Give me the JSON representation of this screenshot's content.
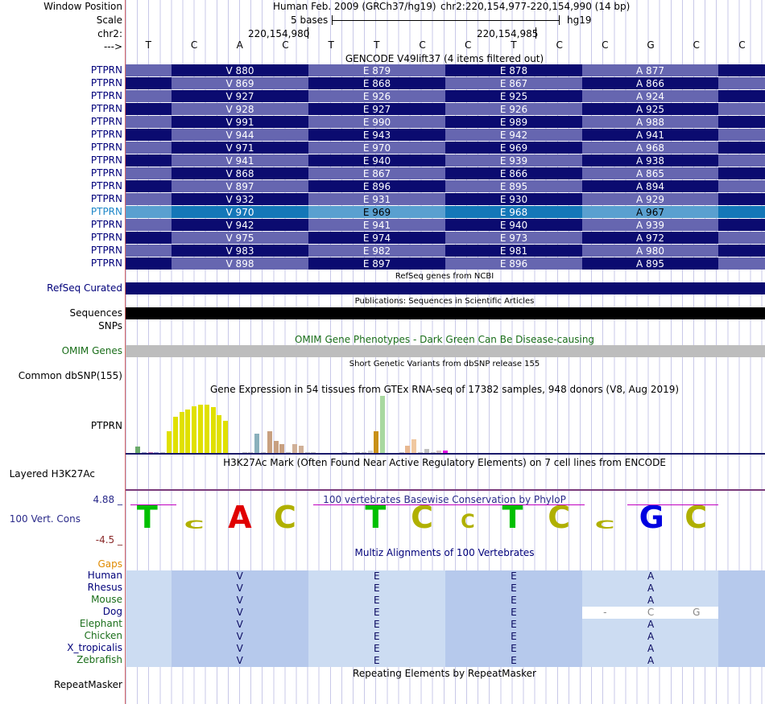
{
  "header": {
    "labels": {
      "window_position": "Window Position",
      "scale": "Scale",
      "chr": "chr2:",
      "arrow": "--->"
    },
    "assembly": "Human Feb. 2009 (GRCh37/hg19)",
    "position": "chr2:220,154,977-220,154,990 (14 bp)",
    "scale_text": "5 bases",
    "scale_db": "hg19",
    "coord_left": "220,154,980",
    "coord_right": "220,154,985",
    "bases": [
      "T",
      "C",
      "A",
      "C",
      "T",
      "T",
      "C",
      "C",
      "T",
      "C",
      "C",
      "G",
      "C",
      "C"
    ]
  },
  "gencode": {
    "title": "GENCODE V49lift37 (4 items filtered out)",
    "gene": "PTPRN",
    "selected_row": 11,
    "rows": [
      [
        "V 880",
        "E 879",
        "E 878",
        "A 877"
      ],
      [
        "V 869",
        "E 868",
        "E 867",
        "A 866"
      ],
      [
        "V 927",
        "E 926",
        "E 925",
        "A 924"
      ],
      [
        "V 928",
        "E 927",
        "E 926",
        "A 925"
      ],
      [
        "V 991",
        "E 990",
        "E 989",
        "A 988"
      ],
      [
        "V 944",
        "E 943",
        "E 942",
        "A 941"
      ],
      [
        "V 971",
        "E 970",
        "E 969",
        "A 968"
      ],
      [
        "V 941",
        "E 940",
        "E 939",
        "A 938"
      ],
      [
        "V 868",
        "E 867",
        "E 866",
        "A 865"
      ],
      [
        "V 897",
        "E 896",
        "E 895",
        "A 894"
      ],
      [
        "V 932",
        "E 931",
        "E 930",
        "A 929"
      ],
      [
        "V 970",
        "E 969",
        "E 968",
        "A 967"
      ],
      [
        "V 942",
        "E 941",
        "E 940",
        "A 939"
      ],
      [
        "V 975",
        "E 974",
        "E 973",
        "A 972"
      ],
      [
        "V 983",
        "E 982",
        "E 981",
        "A 980"
      ],
      [
        "V 898",
        "E 897",
        "E 896",
        "A 895"
      ]
    ]
  },
  "refseq": {
    "label": "RefSeq Curated",
    "title": "RefSeq genes from NCBI"
  },
  "publications": {
    "title": "Publications: Sequences in Scientific Articles",
    "label1": "Sequences",
    "label2": "SNPs"
  },
  "omim": {
    "title": "OMIM Gene Phenotypes - Dark Green Can Be Disease-causing",
    "label": "OMIM Genes"
  },
  "dbsnp": {
    "title": "Short Genetic Variants from dbSNP release 155",
    "label": "Common dbSNP(155)"
  },
  "gtex": {
    "title": "Gene Expression in 54 tissues from GTEx RNA-seq of 17382 samples, 948 donors (V8, Aug 2019)",
    "label": "PTPRN",
    "bars": [
      {
        "h": 9,
        "c": "#6aa96a"
      },
      {
        "h": 2,
        "c": "#9aa0c8"
      },
      {
        "h": 2,
        "c": "#c06ab0"
      },
      {
        "h": 2,
        "c": "#9a9ad8"
      },
      {
        "h": 2,
        "c": "#c0c0c0"
      },
      {
        "h": 28,
        "c": "#e0e000"
      },
      {
        "h": 46,
        "c": "#e0e000"
      },
      {
        "h": 52,
        "c": "#e0e000"
      },
      {
        "h": 55,
        "c": "#e0e000"
      },
      {
        "h": 59,
        "c": "#e0e000"
      },
      {
        "h": 61,
        "c": "#e0e000"
      },
      {
        "h": 61,
        "c": "#e0e000"
      },
      {
        "h": 58,
        "c": "#e0e000"
      },
      {
        "h": 48,
        "c": "#e0e000"
      },
      {
        "h": 41,
        "c": "#e0e000"
      },
      {
        "h": 0,
        "c": "#ffffff"
      },
      {
        "h": 0,
        "c": "#ffffff"
      },
      {
        "h": 2,
        "c": "#c0c0c0"
      },
      {
        "h": 2,
        "c": "#c0c0c0"
      },
      {
        "h": 25,
        "c": "#8ab0bc"
      },
      {
        "h": 2,
        "c": "#c0c0c0"
      },
      {
        "h": 28,
        "c": "#c8a080"
      },
      {
        "h": 16,
        "c": "#c8a080"
      },
      {
        "h": 12,
        "c": "#c8a080"
      },
      {
        "h": 2,
        "c": "#c0c0c0"
      },
      {
        "h": 12,
        "c": "#d0b098"
      },
      {
        "h": 10,
        "c": "#d0b098"
      },
      {
        "h": 2,
        "c": "#c0c0c0"
      },
      {
        "h": 2,
        "c": "#c0c0c0"
      },
      {
        "h": 0,
        "c": "#ffffff"
      },
      {
        "h": 0,
        "c": "#ffffff"
      },
      {
        "h": 0,
        "c": "#ffffff"
      },
      {
        "h": 0,
        "c": "#ffffff"
      },
      {
        "h": 2,
        "c": "#b0b0c0"
      },
      {
        "h": 0,
        "c": "#ffffff"
      },
      {
        "h": 2,
        "c": "#c0c0c0"
      },
      {
        "h": 2,
        "c": "#c0c0c0"
      },
      {
        "h": 4,
        "c": "#d0d0d0"
      },
      {
        "h": 28,
        "c": "#c89018"
      },
      {
        "h": 72,
        "c": "#a8d8a0"
      },
      {
        "h": 0,
        "c": "#ffffff"
      },
      {
        "h": 0,
        "c": "#ffffff"
      },
      {
        "h": 2,
        "c": "#c0c0c0"
      },
      {
        "h": 10,
        "c": "#e8b890"
      },
      {
        "h": 18,
        "c": "#f0c8a0"
      },
      {
        "h": 2,
        "c": "#c0c0c0"
      },
      {
        "h": 6,
        "c": "#c0c0c0"
      },
      {
        "h": 2,
        "c": "#c0c0c0"
      },
      {
        "h": 4,
        "c": "#d0c0c0"
      },
      {
        "h": 4,
        "c": "#e000e0"
      }
    ]
  },
  "h3k27ac": {
    "title": "H3K27Ac Mark (Often Found Near Active Regulatory Elements) on 7 cell lines from ENCODE",
    "label": "Layered H3K27Ac"
  },
  "phylop": {
    "title": "100 vertebrates Basewise Conservation by PhyloP",
    "label": "100 Vert. Cons",
    "max": "4.88 _",
    "min": "-4.5 _"
  },
  "multiz": {
    "title": "Multiz Alignments of 100 Vertebrates",
    "gaps_label": "Gaps",
    "species": [
      {
        "name": "Human",
        "color": "#00007a",
        "aa": [
          "V",
          "E",
          "E",
          "A"
        ]
      },
      {
        "name": "Rhesus",
        "color": "#00007a",
        "aa": [
          "V",
          "E",
          "E",
          "A"
        ]
      },
      {
        "name": "Mouse",
        "color": "#1a6e1a",
        "aa": [
          "V",
          "E",
          "E",
          "A"
        ]
      },
      {
        "name": "Dog",
        "color": "#00007a",
        "aa": [
          "V",
          "E",
          "E",
          "-",
          "C",
          "G"
        ]
      },
      {
        "name": "Elephant",
        "color": "#1a6e1a",
        "aa": [
          "V",
          "E",
          "E",
          "A"
        ]
      },
      {
        "name": "Chicken",
        "color": "#1a6e1a",
        "aa": [
          "V",
          "E",
          "E",
          "A"
        ]
      },
      {
        "name": "X_tropicalis",
        "color": "#00007a",
        "aa": [
          "V",
          "E",
          "E",
          "A"
        ]
      },
      {
        "name": "Zebrafish",
        "color": "#1a6e1a",
        "aa": [
          "V",
          "E",
          "E",
          "A"
        ]
      }
    ]
  },
  "repeatmasker": {
    "title": "Repeating Elements by RepeatMasker",
    "label": "RepeatMasker"
  },
  "colors": {
    "gene_dark": "#0b0b70",
    "gene_light": "#6666b0",
    "selected": "#1c86c8",
    "omim_bar": "#bdbdbd"
  }
}
